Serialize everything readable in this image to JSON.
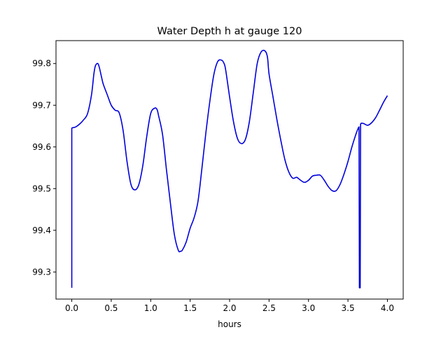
{
  "chart_data": {
    "type": "line",
    "title": "Water Depth h at gauge 120",
    "xlabel": "hours",
    "ylabel": "",
    "xlim": [
      -0.2,
      4.2
    ],
    "ylim": [
      99.235,
      99.855
    ],
    "x_ticks": [
      0.0,
      0.5,
      1.0,
      1.5,
      2.0,
      2.5,
      3.0,
      3.5,
      4.0
    ],
    "x_tick_labels": [
      "0.0",
      "0.5",
      "1.0",
      "1.5",
      "2.0",
      "2.5",
      "3.0",
      "3.5",
      "4.0"
    ],
    "y_ticks": [
      99.3,
      99.4,
      99.5,
      99.6,
      99.7,
      99.8
    ],
    "y_tick_labels": [
      "99.3",
      "99.4",
      "99.5",
      "99.6",
      "99.7",
      "99.8"
    ],
    "grid": false,
    "legend": "none",
    "series": [
      {
        "color": "#0000dd",
        "x": [
          0.0,
          0.0,
          0.01,
          0.05,
          0.1,
          0.15,
          0.2,
          0.25,
          0.28,
          0.3,
          0.33,
          0.35,
          0.38,
          0.4,
          0.45,
          0.5,
          0.55,
          0.6,
          0.65,
          0.7,
          0.75,
          0.8,
          0.85,
          0.9,
          0.95,
          1.0,
          1.05,
          1.08,
          1.1,
          1.15,
          1.2,
          1.25,
          1.3,
          1.35,
          1.38,
          1.4,
          1.45,
          1.5,
          1.55,
          1.6,
          1.65,
          1.7,
          1.75,
          1.8,
          1.85,
          1.9,
          1.93,
          1.95,
          2.0,
          2.05,
          2.1,
          2.15,
          2.2,
          2.25,
          2.3,
          2.35,
          2.4,
          2.45,
          2.48,
          2.5,
          2.55,
          2.6,
          2.65,
          2.7,
          2.75,
          2.8,
          2.85,
          2.9,
          2.95,
          3.0,
          3.05,
          3.1,
          3.15,
          3.2,
          3.25,
          3.3,
          3.35,
          3.4,
          3.45,
          3.5,
          3.55,
          3.6,
          3.63,
          3.64,
          3.645,
          3.65,
          3.655,
          3.66,
          3.665,
          3.67,
          3.7,
          3.75,
          3.8,
          3.85,
          3.9,
          3.95,
          4.0
        ],
        "values": [
          99.262,
          99.645,
          99.646,
          99.648,
          99.655,
          99.665,
          99.68,
          99.725,
          99.775,
          99.795,
          99.8,
          99.79,
          99.765,
          99.75,
          99.725,
          99.7,
          99.688,
          99.682,
          99.64,
          99.565,
          99.51,
          99.497,
          99.51,
          99.555,
          99.625,
          99.68,
          99.693,
          99.69,
          99.675,
          99.63,
          99.545,
          99.465,
          99.39,
          99.352,
          99.35,
          99.352,
          99.372,
          99.405,
          99.43,
          99.47,
          99.55,
          99.635,
          99.71,
          99.773,
          99.805,
          99.808,
          99.8,
          99.785,
          99.72,
          99.66,
          99.62,
          99.608,
          99.618,
          99.66,
          99.73,
          99.8,
          99.828,
          99.83,
          99.815,
          99.775,
          99.72,
          99.665,
          99.615,
          99.57,
          99.54,
          99.525,
          99.527,
          99.52,
          99.515,
          99.52,
          99.53,
          99.532,
          99.532,
          99.52,
          99.505,
          99.495,
          99.495,
          99.51,
          99.535,
          99.565,
          99.6,
          99.63,
          99.645,
          99.648,
          99.262,
          99.268,
          99.262,
          99.655,
          99.656,
          99.657,
          99.656,
          99.652,
          99.658,
          99.67,
          99.688,
          99.707,
          99.723
        ]
      }
    ]
  }
}
